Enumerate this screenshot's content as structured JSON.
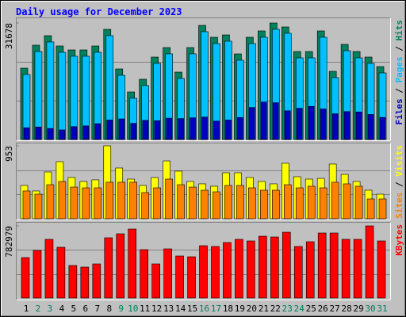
{
  "chart_data": {
    "type": "bar",
    "title": "Daily usage for December 2023",
    "categories": [
      "1",
      "2",
      "3",
      "4",
      "5",
      "6",
      "7",
      "8",
      "9",
      "10",
      "11",
      "12",
      "13",
      "14",
      "15",
      "16",
      "17",
      "18",
      "19",
      "20",
      "21",
      "22",
      "23",
      "24",
      "25",
      "26",
      "27",
      "28",
      "29",
      "30",
      "31"
    ],
    "category_colors": [
      "#000000",
      "#00805c",
      "#00805c",
      "#000000",
      "#000000",
      "#000000",
      "#000000",
      "#000000",
      "#00805c",
      "#00805c",
      "#000000",
      "#000000",
      "#000000",
      "#000000",
      "#000000",
      "#00805c",
      "#00805c",
      "#000000",
      "#000000",
      "#000000",
      "#000000",
      "#000000",
      "#00805c",
      "#00805c",
      "#000000",
      "#000000",
      "#000000",
      "#000000",
      "#000000",
      "#00805c",
      "#00805c"
    ],
    "legend_separator": " / ",
    "panels": [
      {
        "ylim": [
          0,
          31678
        ],
        "yticks": [
          31678
        ],
        "series": [
          {
            "name": "Hits",
            "color": "#00805c",
            "values": [
              19395,
              25645,
              28230,
              25429,
              24352,
              24352,
              25429,
              29955,
              19180,
              12930,
              16378,
              22412,
              24998,
              18318,
              24998,
              31032,
              27800,
              28446,
              23274,
              27800,
              29524,
              31678,
              30601,
              23921,
              23921,
              29524,
              18533,
              25860,
              23921,
              22412,
              19826
            ]
          },
          {
            "name": "Pages",
            "color": "#00c0ff",
            "values": [
              17675,
              23925,
              26510,
              23709,
              22632,
              22632,
              23709,
              28235,
              17460,
              11210,
              14658,
              20692,
              23278,
              16598,
              23278,
              29312,
              26080,
              26726,
              21554,
              26080,
              27804,
              29958,
              28881,
              22201,
              22201,
              27804,
              16813,
              24140,
              22201,
              20692,
              18106
            ]
          },
          {
            "name": "Files",
            "color": "#0000c0",
            "values": [
              3200,
              3400,
              3000,
              2600,
              3500,
              3700,
              4300,
              5300,
              5600,
              4400,
              5200,
              5100,
              5800,
              5700,
              5900,
              6100,
              5000,
              5300,
              6000,
              8700,
              10200,
              10000,
              7800,
              8500,
              9000,
              8300,
              7000,
              7600,
              7500,
              6800,
              6000
            ]
          }
        ]
      },
      {
        "ylim": [
          0,
          953
        ],
        "yticks": [
          953
        ],
        "series": [
          {
            "name": "Visits",
            "color": "#ffff00",
            "values": [
              435,
              363,
              611,
              746,
              539,
              487,
              508,
              953,
              663,
              518,
              435,
              539,
              756,
              622,
              487,
              456,
              425,
              601,
              601,
              539,
              487,
              456,
              725,
              549,
              518,
              528,
              715,
              580,
              487,
              373,
              321
            ]
          },
          {
            "name": "Sites",
            "color": "#ff8000",
            "values": [
              363,
              321,
              445,
              487,
              414,
              404,
              404,
              477,
              477,
              477,
              342,
              404,
              518,
              445,
              414,
              373,
              352,
              435,
              435,
              404,
              373,
              373,
              445,
              404,
              425,
              404,
              477,
              456,
              425,
              259,
              259
            ]
          }
        ]
      },
      {
        "ylim": [
          0,
          782979
        ],
        "yticks": [
          782979
        ],
        "series": [
          {
            "name": "KBytes",
            "color": "#ff0000",
            "values": [
              438800,
              516240,
              636700,
              550660,
              352760,
              335560,
              369970,
              653900,
              696920,
              748550,
              524840,
              369970,
              533450,
              456010,
              447410,
              567860,
              559260,
              602280,
              636700,
              619490,
              671110,
              662510,
              714130,
              559260,
              610880,
              705530,
              705530,
              636700,
              636700,
              782979,
              619490
            ]
          }
        ]
      }
    ]
  }
}
